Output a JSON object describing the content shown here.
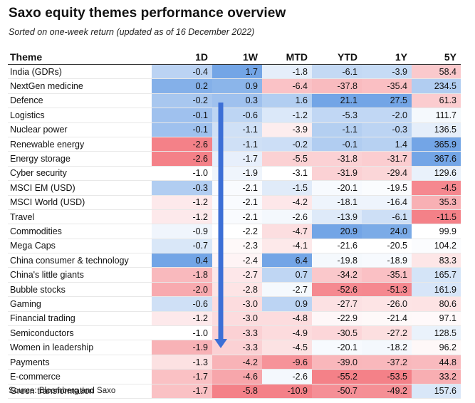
{
  "title": "Saxo equity themes performance overview",
  "subtitle": "Sorted on one-week return (updated as of 16 December 2022)",
  "source": "Source: Bloomberg and Saxo",
  "colors": {
    "negative": "#f0505a",
    "positive": "#3c82dc",
    "arrow": "#3c6fd6"
  },
  "table": {
    "columns": [
      "Theme",
      "1D",
      "1W",
      "MTD",
      "YTD",
      "1Y",
      "5Y"
    ],
    "rows": [
      [
        "India (GDRs)",
        -0.4,
        1.7,
        -1.8,
        -6.1,
        -3.9,
        58.4
      ],
      [
        "NextGen medicine",
        0.2,
        0.9,
        -6.4,
        -37.8,
        -35.4,
        234.5
      ],
      [
        "Defence",
        -0.2,
        0.3,
        1.6,
        21.1,
        27.5,
        61.3
      ],
      [
        "Logistics",
        -0.1,
        -0.6,
        -1.2,
        -5.3,
        -2.0,
        111.7
      ],
      [
        "Nuclear power",
        -0.1,
        -1.1,
        -3.9,
        -1.1,
        -0.3,
        136.5
      ],
      [
        "Renewable energy",
        -2.6,
        -1.1,
        -0.2,
        -0.1,
        1.4,
        365.9
      ],
      [
        "Energy storage",
        -2.6,
        -1.7,
        -5.5,
        -31.8,
        -31.7,
        367.6
      ],
      [
        "Cyber security",
        -1.0,
        -1.9,
        -3.1,
        -31.9,
        -29.4,
        129.6
      ],
      [
        "MSCI EM (USD)",
        -0.3,
        -2.1,
        -1.5,
        -20.1,
        -19.5,
        -4.5
      ],
      [
        "MSCI World (USD)",
        -1.2,
        -2.1,
        -4.2,
        -18.1,
        -16.4,
        35.3
      ],
      [
        "Travel",
        -1.2,
        -2.1,
        -2.6,
        -13.9,
        -6.1,
        -11.5
      ],
      [
        "Commodities",
        -0.9,
        -2.2,
        -4.7,
        20.9,
        24.0,
        99.9
      ],
      [
        "Mega Caps",
        -0.7,
        -2.3,
        -4.1,
        -21.6,
        -20.5,
        104.2
      ],
      [
        "China consumer & technology",
        0.4,
        -2.4,
        6.4,
        -19.8,
        -18.9,
        83.3
      ],
      [
        "China's little giants",
        -1.8,
        -2.7,
        0.7,
        -34.2,
        -35.1,
        165.7
      ],
      [
        "Bubble stocks",
        -2.0,
        -2.8,
        -2.7,
        -52.6,
        -51.3,
        161.9
      ],
      [
        "Gaming",
        -0.6,
        -3.0,
        0.9,
        -27.7,
        -26.0,
        80.6
      ],
      [
        "Financial trading",
        -1.2,
        -3.0,
        -4.8,
        -22.9,
        -21.4,
        97.1
      ],
      [
        "Semiconductors",
        -1.0,
        -3.3,
        -4.9,
        -30.5,
        -27.2,
        128.5
      ],
      [
        "Women in leadership",
        -1.9,
        -3.3,
        -4.5,
        -20.1,
        -18.2,
        96.2
      ],
      [
        "Payments",
        -1.3,
        -4.2,
        -9.6,
        -39.0,
        -37.2,
        44.8
      ],
      [
        "E-commerce",
        -1.7,
        -4.6,
        -2.6,
        -55.2,
        -53.5,
        33.2
      ],
      [
        "Green transformation",
        -1.7,
        -5.8,
        -10.9,
        -50.7,
        -49.2,
        157.6
      ]
    ]
  }
}
